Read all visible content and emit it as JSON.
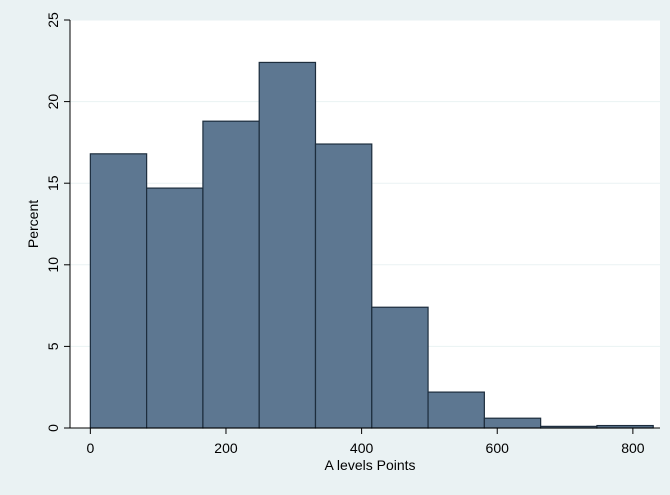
{
  "chart_data": {
    "type": "bar",
    "title": "",
    "xlabel": "A levels Points",
    "ylabel": "Percent",
    "xlim": [
      -30,
      840
    ],
    "ylim": [
      0,
      25
    ],
    "x_ticks": [
      "0",
      "200",
      "400",
      "600",
      "800"
    ],
    "y_ticks": [
      "0",
      "5",
      "10",
      "15",
      "20",
      "25"
    ],
    "grid": "horizontal",
    "legend": "none",
    "bar_color": "#5d7791",
    "bar_edge_color": "#1d2d3d",
    "plot_background": "#ffffff",
    "outer_background": "#eaf2f3",
    "bins": [
      {
        "start": 0,
        "end": 83,
        "value": 16.8
      },
      {
        "start": 83,
        "end": 166,
        "value": 14.7
      },
      {
        "start": 166,
        "end": 249,
        "value": 18.8
      },
      {
        "start": 249,
        "end": 332,
        "value": 22.4
      },
      {
        "start": 332,
        "end": 415,
        "value": 17.4
      },
      {
        "start": 415,
        "end": 498,
        "value": 7.4
      },
      {
        "start": 498,
        "end": 581,
        "value": 2.2
      },
      {
        "start": 581,
        "end": 664,
        "value": 0.6
      },
      {
        "start": 664,
        "end": 747,
        "value": 0.1
      },
      {
        "start": 747,
        "end": 830,
        "value": 0.15
      }
    ]
  }
}
